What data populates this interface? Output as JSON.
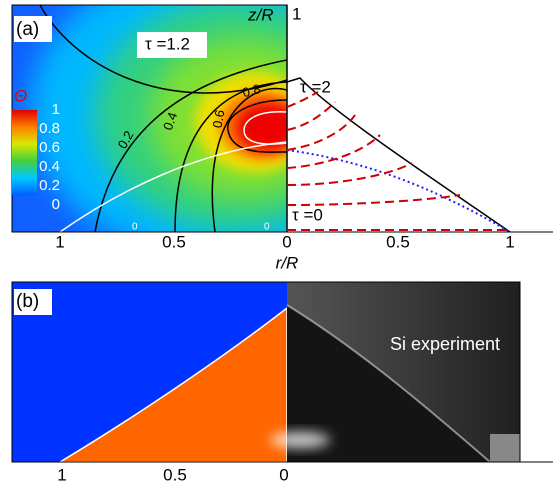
{
  "panel_a": {
    "label": "(a)",
    "x_axis_label": "r/R",
    "y_axis_label": "z/R",
    "y_tick": "1",
    "x_ticks": [
      "1",
      "0.5",
      "0",
      "0.5",
      "1"
    ],
    "colorbar": {
      "title": "Θ",
      "labels": [
        "1",
        "0.8",
        "0.6",
        "0.4",
        "0.2",
        "0"
      ]
    },
    "contour_labels": [
      "0.8",
      "0.6",
      "0.4",
      "0.2",
      "0",
      "0"
    ],
    "annotations": [
      "τ =1.2",
      "τ =2",
      "τ =0"
    ]
  },
  "panel_b": {
    "label": "(b)",
    "x_ticks": [
      "1",
      "0.5",
      "0"
    ],
    "annotation": "Si experiment"
  }
}
